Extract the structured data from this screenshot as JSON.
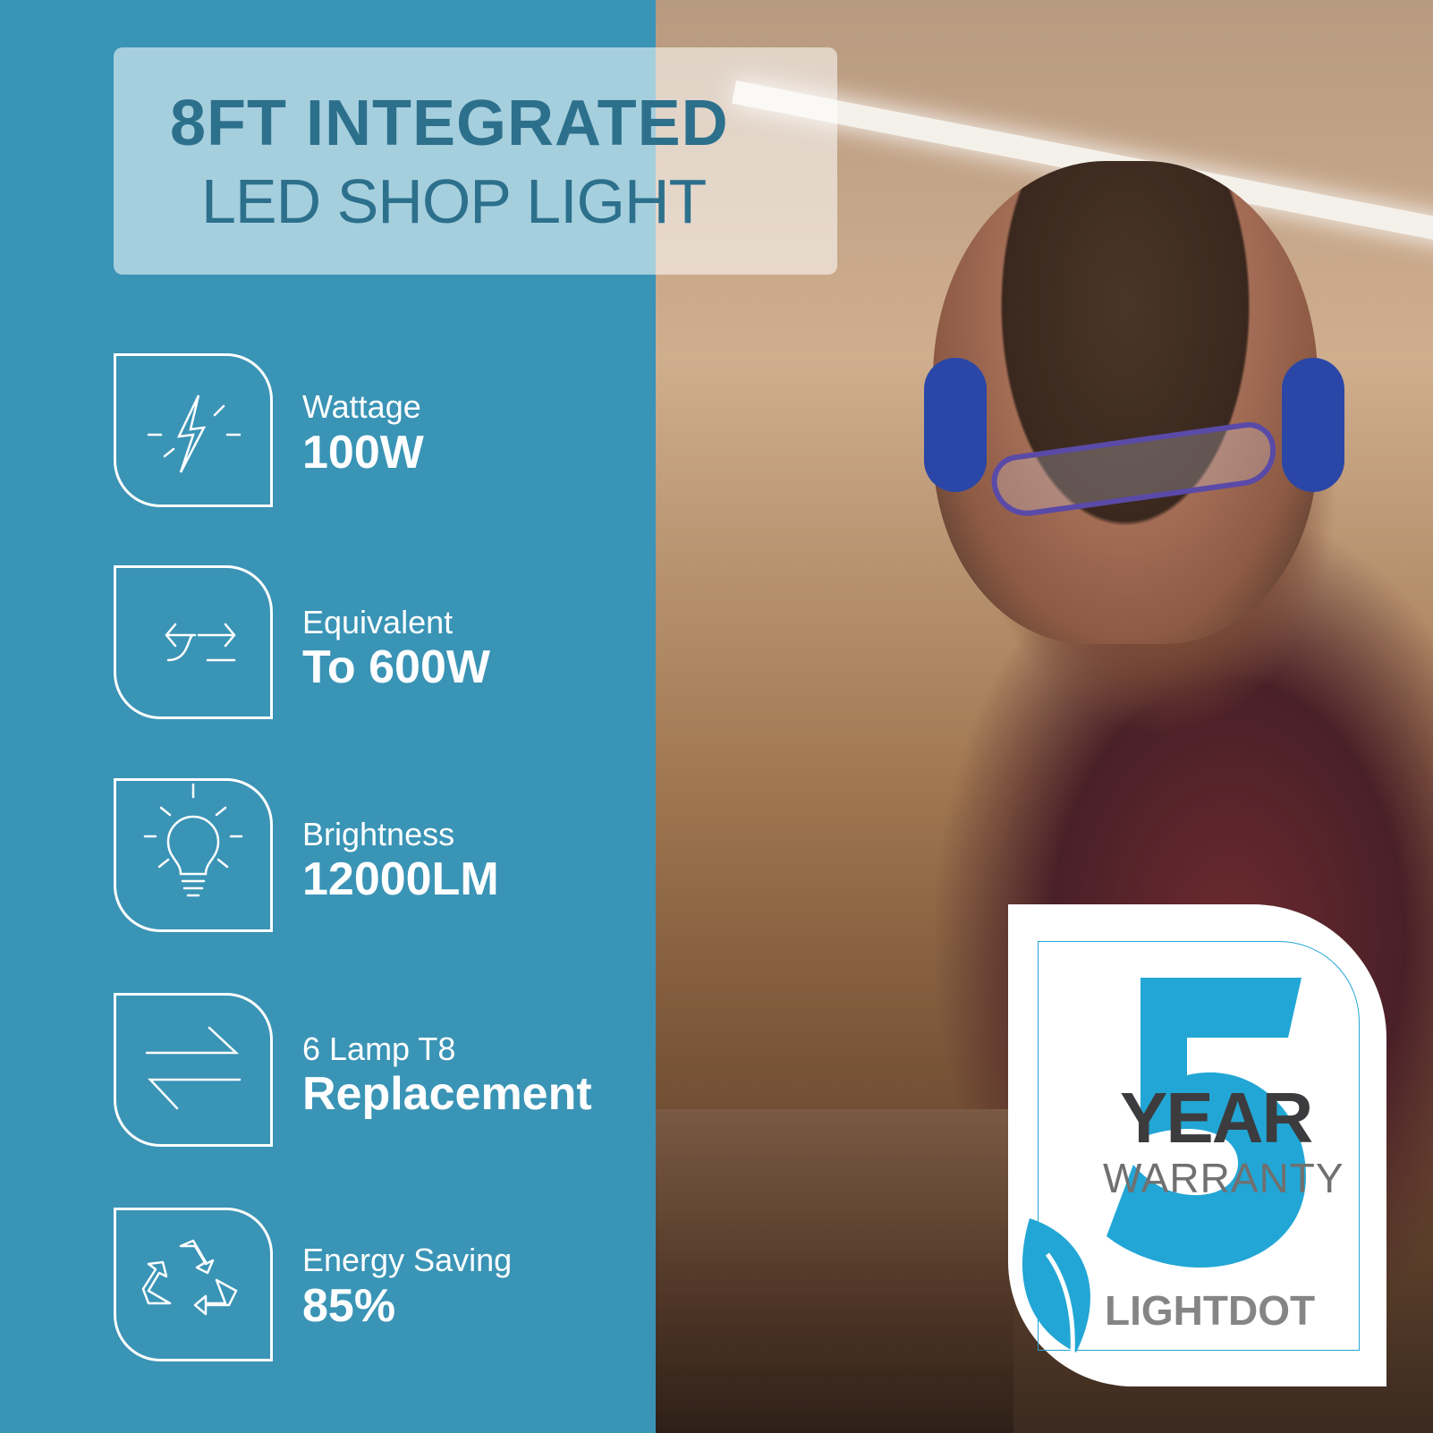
{
  "title": {
    "line1": "8FT INTEGRATED",
    "line2": "LED SHOP LIGHT"
  },
  "features": [
    {
      "icon": "lightning-bolt-icon",
      "label": "Wattage",
      "value": "100W"
    },
    {
      "icon": "exchange-arrows-icon",
      "label": "Equivalent",
      "value": "To 600W"
    },
    {
      "icon": "light-bulb-icon",
      "label": "Brightness",
      "value": "12000LM"
    },
    {
      "icon": "replace-arrows-icon",
      "label": "6 Lamp T8",
      "value": "Replacement"
    },
    {
      "icon": "recycle-icon",
      "label": "Energy Saving",
      "value": "85%"
    }
  ],
  "badge": {
    "number": "5",
    "year": "YEAR",
    "warranty": "WARRANTY",
    "brand": "LIGHTDOT"
  },
  "colors": {
    "panel": "#3a94b6",
    "title_text": "#2c708c",
    "badge_blue": "#22a6d5",
    "badge_dark": "#3c3c3e"
  }
}
